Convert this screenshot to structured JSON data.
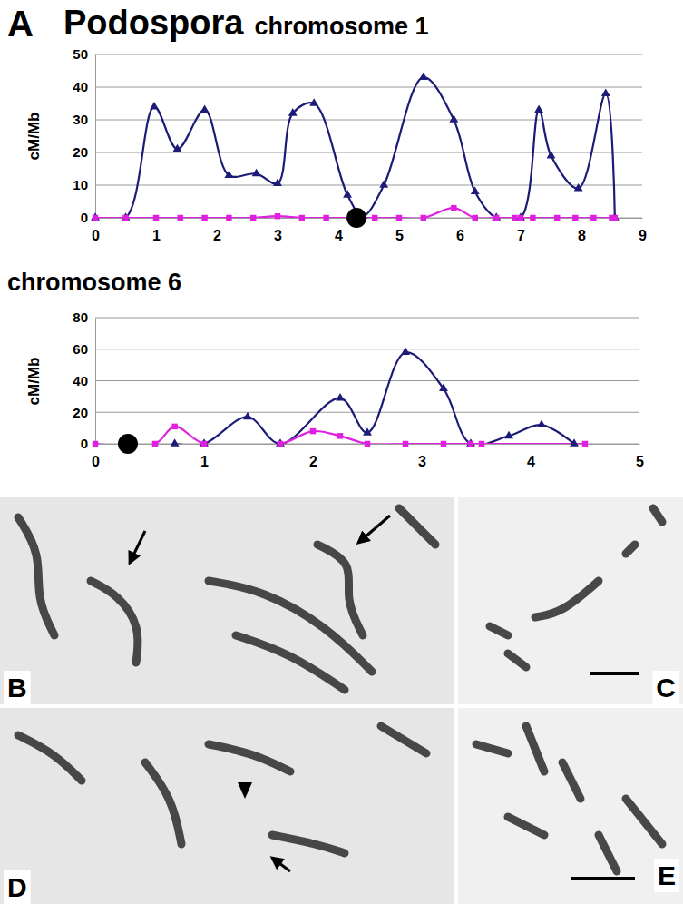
{
  "panel_labels": [
    "A",
    "B",
    "C",
    "D",
    "E"
  ],
  "chart_data": [
    {
      "type": "line",
      "title": "Podospora",
      "subtitle": "chromosome 1",
      "y_label": "cM/Mb",
      "xlim": [
        0,
        9
      ],
      "xticks": [
        0,
        1,
        2,
        3,
        4,
        5,
        6,
        7,
        8,
        9
      ],
      "ylim": [
        0,
        50
      ],
      "yticks": [
        0,
        10,
        20,
        30,
        40,
        50
      ],
      "grid": true,
      "series": [
        {
          "color": "#1c1c78",
          "marker": "triangle",
          "line_style": "solid",
          "x": [
            0,
            0.5,
            0.97,
            1.35,
            1.8,
            2.2,
            2.65,
            3.0,
            3.25,
            3.6,
            4.15,
            4.4,
            4.75,
            5.4,
            5.9,
            6.25,
            6.6,
            7.0,
            7.3,
            7.5,
            7.95,
            8.4,
            8.55
          ],
          "values": [
            0,
            0,
            34,
            21,
            33,
            13,
            13.5,
            10.5,
            32,
            35,
            7,
            0.5,
            10,
            43,
            30,
            8,
            0,
            0,
            33,
            19,
            9,
            38,
            0
          ]
        },
        {
          "color": "#e020e0",
          "marker": "square",
          "line_style": "solid",
          "x": [
            0,
            0.5,
            1.0,
            1.4,
            1.8,
            2.2,
            2.6,
            3.0,
            3.4,
            3.8,
            4.2,
            4.6,
            5.0,
            5.4,
            5.9,
            6.25,
            6.6,
            6.9,
            7.0,
            7.2,
            7.6,
            7.9,
            8.2,
            8.5,
            8.55
          ],
          "values": [
            0,
            0,
            0,
            0,
            0,
            0,
            0,
            0.5,
            0,
            0,
            0,
            0,
            0,
            0,
            3,
            0,
            0,
            0,
            0,
            0,
            0,
            0,
            0,
            0,
            0
          ]
        },
        {
          "color": "#000000",
          "marker": "circle",
          "line_style": "none",
          "x": [
            4.3
          ],
          "values": [
            0
          ]
        }
      ]
    },
    {
      "type": "line",
      "title": "chromosome 6",
      "y_label": "cM/Mb",
      "xlim": [
        0,
        5
      ],
      "xticks": [
        0,
        1,
        2,
        3,
        4,
        5
      ],
      "ylim": [
        0,
        80
      ],
      "yticks": [
        0,
        20,
        40,
        60,
        80
      ],
      "grid": true,
      "series": [
        {
          "color": "#1c1c78",
          "marker": "triangle",
          "line_style": "solid",
          "x": [
            0.73,
            1.0,
            1.4,
            1.7,
            2.25,
            2.5,
            2.85,
            3.2,
            3.45,
            3.8,
            4.1,
            4.4
          ],
          "values": [
            0,
            0,
            17,
            0,
            29,
            7,
            58,
            35,
            0,
            5,
            12,
            0
          ]
        },
        {
          "color": "#e020e0",
          "marker": "square",
          "line_style": "solid",
          "x": [
            0,
            0.55,
            0.73,
            1.0,
            1.7,
            2.0,
            2.25,
            2.5,
            2.85,
            3.2,
            3.45,
            3.55,
            4.5
          ],
          "values": [
            0,
            0,
            11,
            0,
            0,
            8,
            5,
            0,
            0,
            0,
            0,
            0,
            0
          ]
        },
        {
          "color": "#000000",
          "marker": "circle",
          "line_style": "none",
          "x": [
            0.3
          ],
          "values": [
            0
          ]
        }
      ]
    }
  ]
}
